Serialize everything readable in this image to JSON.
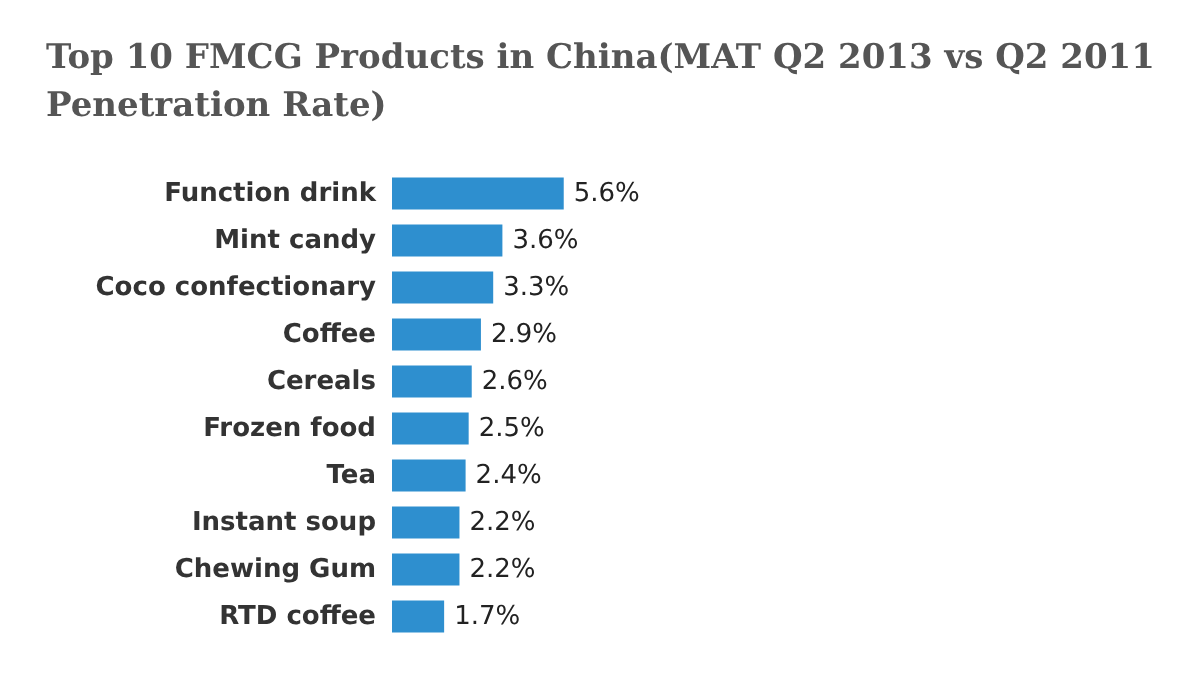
{
  "chart_data": {
    "type": "bar",
    "orientation": "horizontal",
    "title": "Top 10 FMCG Products in China(MAT Q2 2013 vs Q2 2011 Penetration Rate)",
    "categories": [
      "Function drink",
      "Mint candy",
      "Coco confectionary",
      "Coffee",
      "Cereals",
      "Frozen food",
      "Tea",
      "Instant soup",
      "Chewing Gum",
      "RTD coffee"
    ],
    "values": [
      5.6,
      3.6,
      3.3,
      2.9,
      2.6,
      2.5,
      2.4,
      2.2,
      2.2,
      1.7
    ],
    "value_labels": [
      "5.6%",
      "3.6%",
      "3.3%",
      "2.9%",
      "2.6%",
      "2.5%",
      "2.4%",
      "2.2%",
      "2.2%",
      "1.7%"
    ],
    "color": "#2e8fcf",
    "tick_labels": "y"
  }
}
